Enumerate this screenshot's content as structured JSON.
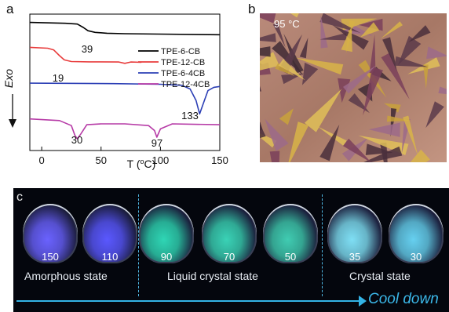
{
  "panel_a": {
    "label": "a",
    "ylabel": "Exo",
    "xlabel": "T (",
    "xlabel_sup": "o",
    "xlabel_end": "C)",
    "annotations": [
      "39",
      "19",
      "133",
      "30",
      "97"
    ]
  },
  "panel_b": {
    "label": "b",
    "temperature_text": "95 °C"
  },
  "panel_c": {
    "label": "c",
    "vials": [
      {
        "temp": "150",
        "color": "#6a62ff"
      },
      {
        "temp": "110",
        "color": "#5a58ff"
      },
      {
        "temp": "90",
        "color": "#2fd6b5"
      },
      {
        "temp": "70",
        "color": "#3ad2b6"
      },
      {
        "temp": "50",
        "color": "#40ccb2"
      },
      {
        "temp": "35",
        "color": "#7fdff5"
      },
      {
        "temp": "30",
        "color": "#66d0f0"
      }
    ],
    "states": [
      "Amorphous state",
      "Liquid crystal state",
      "Crystal state"
    ],
    "cool_down": "Cool down"
  },
  "chart_data": {
    "type": "line",
    "title": "",
    "xlabel": "T (oC)",
    "ylabel": "Exo",
    "xlim": [
      -10,
      150
    ],
    "xticks": [
      0,
      50,
      100,
      150
    ],
    "legend_placement": "center-right",
    "series": [
      {
        "name": "TPE-6-CB",
        "color": "#000000",
        "x": [
          -10,
          20,
          30,
          35,
          39,
          45,
          55,
          70,
          100,
          150
        ],
        "y": [
          37,
          36.5,
          36,
          34,
          32,
          31,
          30.5,
          30.2,
          30,
          29.6
        ]
      },
      {
        "name": "TPE-12-CB",
        "color": "#e83c3c",
        "x": [
          -10,
          5,
          10,
          15,
          19,
          25,
          40,
          65,
          70,
          75,
          84
        ],
        "y": [
          22,
          21.5,
          20.5,
          17,
          14.5,
          13.5,
          13.3,
          13.2,
          12.4,
          13.2,
          13.0
        ]
      },
      {
        "name": "TPE-6-4CB",
        "color": "#2c3fb5",
        "x": [
          -10,
          20,
          60,
          100,
          118,
          125,
          130,
          133,
          136,
          140,
          145,
          150
        ],
        "y": [
          0.5,
          0.4,
          0.2,
          -0.2,
          -0.8,
          -3,
          -10,
          -18,
          -12,
          -4,
          -2,
          -1.5
        ]
      },
      {
        "name": "TPE-12-4CB",
        "color": "#b63aa6",
        "x": [
          -10,
          15,
          25,
          28,
          30,
          33,
          38,
          50,
          70,
          90,
          95,
          97,
          100,
          110,
          150
        ],
        "y": [
          -21,
          -22,
          -25,
          -31,
          -33,
          -30,
          -24.5,
          -24,
          -24,
          -25,
          -28,
          -32,
          -27,
          -24,
          -24.5
        ]
      }
    ]
  }
}
